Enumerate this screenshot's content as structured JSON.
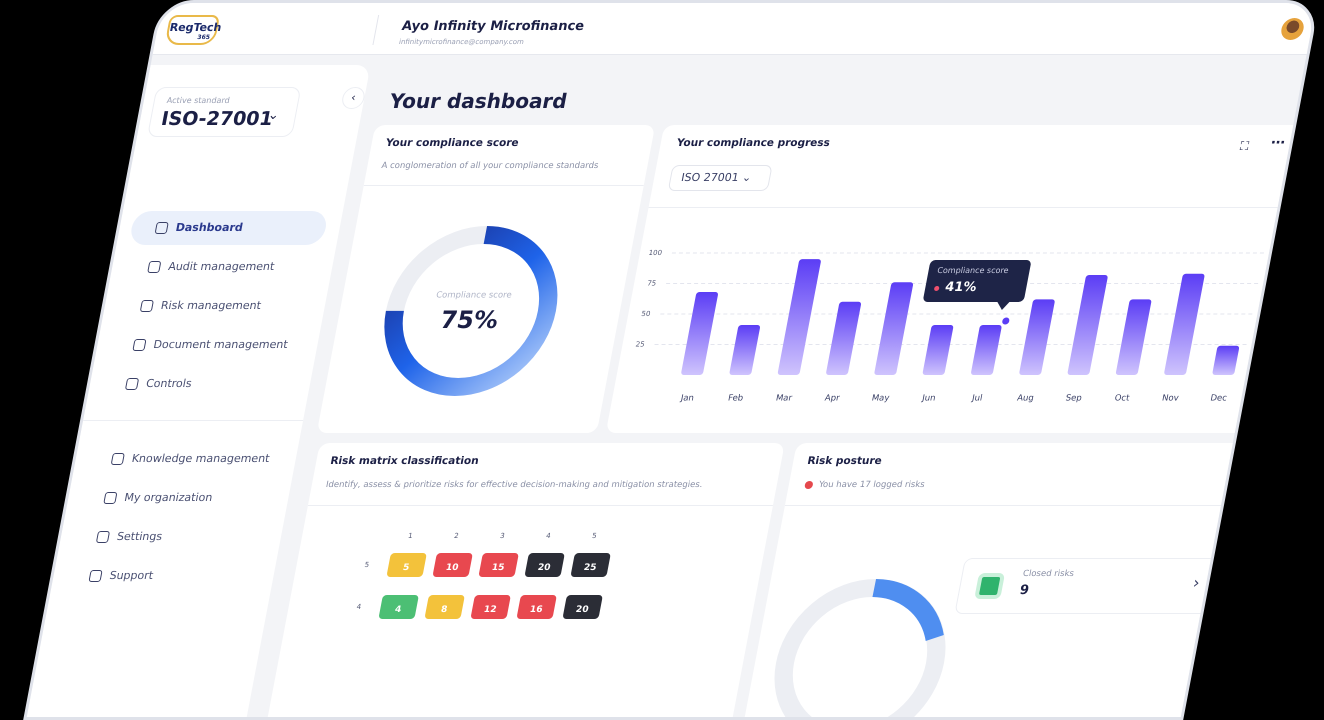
{
  "header": {
    "logo": "RegTech",
    "logo_sub": "365",
    "company": "Ayo Infinity Microfinance",
    "email": "infinitymicrofinance@company.com"
  },
  "sidebar": {
    "standard_label": "Active standard",
    "standard": "ISO-27001",
    "nav": [
      "Dashboard",
      "Audit management",
      "Risk management",
      "Document management",
      "Controls"
    ],
    "nav_bottom": [
      "Knowledge management",
      "My organization",
      "Settings",
      "Support"
    ]
  },
  "page_title": "Your dashboard",
  "score_card": {
    "title": "Your compliance score",
    "subtitle": "A conglomeration of all your compliance standards",
    "label": "Compliance score",
    "score": 75,
    "score_label": "75%"
  },
  "chart_data": {
    "type": "bar",
    "title": "Your compliance progress",
    "filter": "ISO 27001",
    "categories": [
      "Jan",
      "Feb",
      "Mar",
      "Apr",
      "May",
      "Jun",
      "Jul",
      "Aug",
      "Sep",
      "Oct",
      "Nov",
      "Dec"
    ],
    "values": [
      68,
      41,
      95,
      60,
      76,
      41,
      41,
      62,
      82,
      62,
      83,
      24
    ],
    "ylim": [
      0,
      100
    ],
    "yticks": [
      25,
      50,
      75,
      100
    ],
    "grid": true,
    "color": "#5b3df5",
    "tooltip": {
      "label": "Compliance score",
      "text": "41%"
    }
  },
  "risk_matrix": {
    "title": "Risk matrix classification",
    "subtitle": "Identify, assess & prioritize risks for effective decision-making and mitigation strategies.",
    "columns": [
      1,
      2,
      3,
      4,
      5
    ],
    "rows": [
      {
        "label": 5,
        "cells": [
          5,
          10,
          15,
          20,
          25
        ]
      },
      {
        "label": 4,
        "cells": [
          4,
          8,
          12,
          16,
          20
        ]
      }
    ]
  },
  "risk_posture": {
    "title": "Risk posture",
    "note": "You have 17 logged risks",
    "closed_label": "Closed risks",
    "closed_count": 9
  }
}
